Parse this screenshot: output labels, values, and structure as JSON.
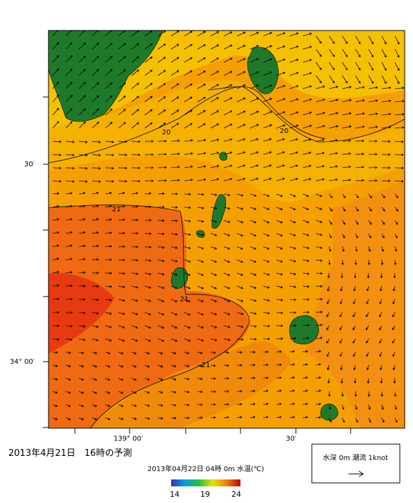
{
  "map": {
    "axis_labels": {
      "left": [
        "30′",
        "34° 00′"
      ],
      "bottom": [
        "139° 00′",
        "30′"
      ]
    },
    "contour_labels": [
      "20",
      "20",
      "21",
      "21",
      "21"
    ],
    "caption": "2013年4月21日　16時の予測",
    "colorbar": {
      "title": "2013年04月22日 04時 0m 水温(℃)",
      "ticks": [
        "14",
        "19",
        "24"
      ]
    },
    "legend": "水深 0m 潮流 1knot"
  }
}
